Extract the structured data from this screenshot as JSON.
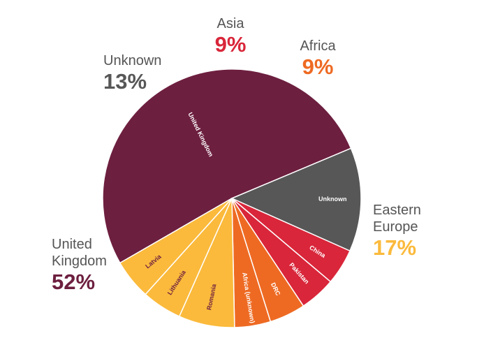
{
  "chart_data": {
    "type": "pie",
    "slices": [
      {
        "label": "United Kingdom",
        "value": 52,
        "color": "#6d1f3f",
        "text_color": "#ffffff"
      },
      {
        "label": "Unknown",
        "value": 13,
        "color": "#575757",
        "text_color": "#ffffff"
      },
      {
        "label": "China",
        "value": 4.5,
        "color": "#d9263a",
        "text_color": "#ffffff"
      },
      {
        "label": "Pakistan",
        "value": 4.5,
        "color": "#d9263a",
        "text_color": "#ffffff"
      },
      {
        "label": "DRC",
        "value": 4.5,
        "color": "#ee6a23",
        "text_color": "#ffffff"
      },
      {
        "label": "Africa (unknown)",
        "value": 4.5,
        "color": "#ee6a23",
        "text_color": "#ffffff"
      },
      {
        "label": "Romania",
        "value": 7,
        "color": "#fbba3c",
        "text_color": "#6d1f3f"
      },
      {
        "label": "Lithuania",
        "value": 5,
        "color": "#fbba3c",
        "text_color": "#6d1f3f"
      },
      {
        "label": "Latvia",
        "value": 5,
        "color": "#fbba3c",
        "text_color": "#6d1f3f"
      }
    ],
    "groups": [
      {
        "name": [
          "Asia"
        ],
        "percent": "9%",
        "color": "#d9263a"
      },
      {
        "name": [
          "Africa"
        ],
        "percent": "9%",
        "color": "#ee6a23"
      },
      {
        "name": [
          "Unknown"
        ],
        "percent": "13%",
        "color": "#575757"
      },
      {
        "name": [
          "Eastern",
          "Europe"
        ],
        "percent": "17%",
        "color": "#fbba3c"
      },
      {
        "name": [
          "United",
          "Kingdom"
        ],
        "percent": "52%",
        "color": "#6d1f3f"
      }
    ]
  }
}
